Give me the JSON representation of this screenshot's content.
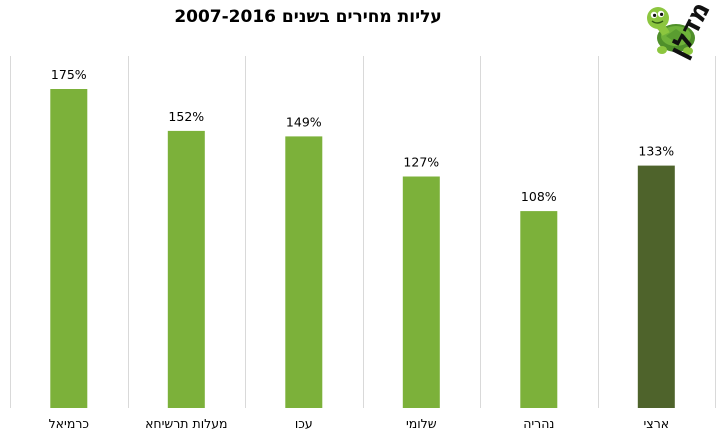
{
  "logo": {
    "text": "מדלן",
    "icon": "turtle-icon"
  },
  "chart_data": {
    "type": "bar",
    "title": "עליות מחירים בשנים 2007-2016",
    "categories": [
      "כרמיאל",
      "מעלות תרשיחא",
      "עכו",
      "שלומי",
      "נהריה",
      "ארצי"
    ],
    "values": [
      175,
      152,
      149,
      127,
      108,
      133
    ],
    "data_labels": [
      "175%",
      "152%",
      "149%",
      "127%",
      "108%",
      "133%"
    ],
    "unit": "%",
    "ylim": [
      0,
      175
    ],
    "xlabel": "",
    "ylabel": "",
    "grid": "vertical separators",
    "legend": "none",
    "colors": {
      "default": "#7cb13a",
      "highlight": "#4e632b",
      "separator": "#d9d9d9"
    },
    "highlight_category": "ארצי"
  }
}
